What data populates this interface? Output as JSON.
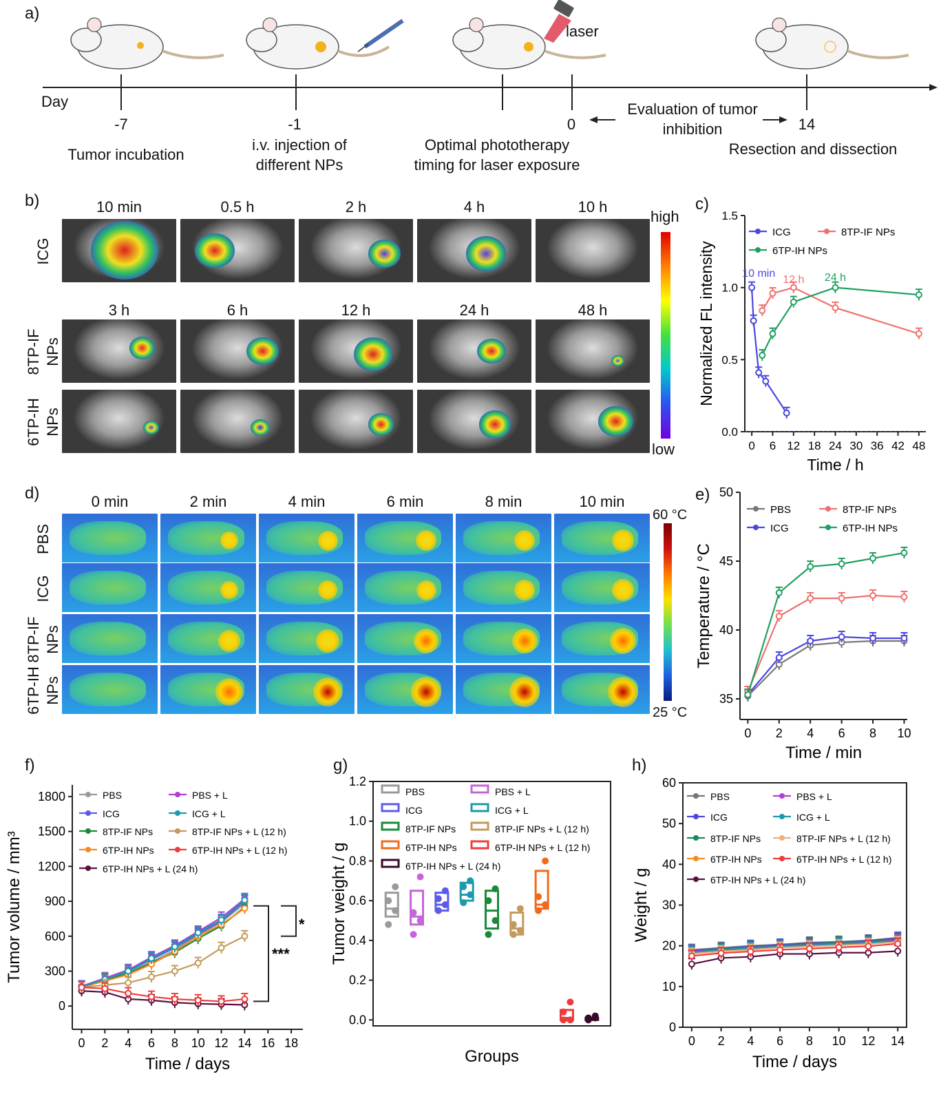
{
  "panel_a": {
    "label": "a)",
    "axis_label": "Day",
    "laser_label": "laser",
    "days": [
      "-7",
      "-1",
      "0",
      "14"
    ],
    "eval_text_1": "Evaluation of tumor",
    "eval_text_2": "inhibition",
    "step_1": "Tumor incubation",
    "step_2_line1": "i.v. injection of",
    "step_2_line2": "different NPs",
    "step_3_line1": "Optimal phototherapy",
    "step_3_line2": "timing for laser exposure",
    "step_4": "Resection and  dissection",
    "colors": {
      "mouse_body": "#f4f4f4",
      "tumor": "#f2b21c",
      "laser": "#e35a6a"
    }
  },
  "panel_b": {
    "label": "b)",
    "row_labels": [
      "ICG",
      "8TP-IF NPs",
      "6TP-IH NPs"
    ],
    "row_label_lines": [
      [
        "ICG"
      ],
      [
        "8TP-IF",
        "NPs"
      ],
      [
        "6TP-IH",
        "NPs"
      ]
    ],
    "icg_times": [
      "10 min",
      "0.5 h",
      "2 h",
      "4 h",
      "10 h"
    ],
    "np_times": [
      "3 h",
      "6 h",
      "12 h",
      "24 h",
      "48 h"
    ],
    "scale_high": "high",
    "scale_low": "low"
  },
  "panel_d": {
    "label": "d)",
    "times": [
      "0 min",
      "2 min",
      "4 min",
      "6 min",
      "8 min",
      "10 min"
    ],
    "row_labels": [
      "PBS",
      "ICG",
      "8TP-IF NPs",
      "6TP-IH NPs"
    ],
    "row_label_lines": [
      [
        "PBS"
      ],
      [
        "ICG"
      ],
      [
        "8TP-IF",
        "NPs"
      ],
      [
        "6TP-IH",
        "NPs"
      ]
    ],
    "scale_high": "60 °C",
    "scale_low": "25 °C"
  },
  "chart_data": [
    {
      "id": "c",
      "panel_label": "c)",
      "type": "line",
      "xlabel": "Time / h",
      "ylabel": "Normalized FL intensity",
      "xticks": [
        0,
        6,
        12,
        18,
        24,
        30,
        36,
        42,
        48
      ],
      "yticks": [
        0.0,
        0.5,
        1.0,
        1.5
      ],
      "xlim": [
        -2,
        50
      ],
      "ylim": [
        0,
        1.5
      ],
      "series": [
        {
          "name": "ICG",
          "color": "#4b47e0",
          "x": [
            0,
            0.5,
            2,
            4,
            10
          ],
          "y": [
            1.0,
            0.77,
            0.41,
            0.35,
            0.13
          ]
        },
        {
          "name": "8TP-IF NPs",
          "color": "#f07070",
          "x": [
            3,
            6,
            12,
            24,
            48
          ],
          "y": [
            0.84,
            0.96,
            1.0,
            0.86,
            0.68
          ]
        },
        {
          "name": "6TP-IH NPs",
          "color": "#20a060",
          "x": [
            3,
            6,
            12,
            24,
            48
          ],
          "y": [
            0.53,
            0.68,
            0.9,
            1.0,
            0.95
          ]
        }
      ],
      "annotations": [
        {
          "text": "10 min",
          "color": "#4b47e0"
        },
        {
          "text": "12 h",
          "color": "#f07070"
        },
        {
          "text": "24 h",
          "color": "#20a060"
        }
      ]
    },
    {
      "id": "e",
      "panel_label": "e)",
      "type": "line",
      "xlabel": "Time / min",
      "ylabel": "Temperature / °C",
      "xticks": [
        0,
        2,
        4,
        6,
        8,
        10
      ],
      "yticks": [
        35,
        40,
        45,
        50
      ],
      "xlim": [
        -0.5,
        10.2
      ],
      "ylim": [
        33.5,
        50
      ],
      "series": [
        {
          "name": "PBS",
          "color": "#777777",
          "x": [
            0,
            2,
            4,
            6,
            8,
            10
          ],
          "y": [
            35.2,
            37.5,
            38.9,
            39.1,
            39.2,
            39.2
          ]
        },
        {
          "name": "ICG",
          "color": "#4b47e0",
          "x": [
            0,
            2,
            4,
            6,
            8,
            10
          ],
          "y": [
            35.3,
            38.0,
            39.2,
            39.5,
            39.4,
            39.4
          ]
        },
        {
          "name": "8TP-IF NPs",
          "color": "#f07070",
          "x": [
            0,
            2,
            4,
            6,
            8,
            10
          ],
          "y": [
            35.5,
            41.0,
            42.3,
            42.3,
            42.5,
            42.4
          ]
        },
        {
          "name": "6TP-IH NPs",
          "color": "#20a060",
          "x": [
            0,
            2,
            4,
            6,
            8,
            10
          ],
          "y": [
            35.3,
            42.7,
            44.6,
            44.8,
            45.2,
            45.6
          ]
        }
      ]
    },
    {
      "id": "f",
      "panel_label": "f)",
      "type": "line",
      "xlabel": "Time / days",
      "ylabel": "Tumor volume / mm³",
      "xticks": [
        0,
        2,
        4,
        6,
        8,
        10,
        12,
        14,
        16,
        18
      ],
      "yticks": [
        0,
        300,
        600,
        900,
        1200,
        1500,
        1800
      ],
      "xlim": [
        -0.8,
        19
      ],
      "ylim": [
        -200,
        1900
      ],
      "significance": [
        "*",
        "***"
      ],
      "series": [
        {
          "name": "PBS",
          "color": "#9a9a9a",
          "x": [
            0,
            2,
            4,
            6,
            8,
            10,
            12,
            14
          ],
          "y": [
            170,
            230,
            290,
            380,
            480,
            610,
            720,
            880
          ]
        },
        {
          "name": "ICG",
          "color": "#5b5be8",
          "x": [
            0,
            2,
            4,
            6,
            8,
            10,
            12,
            14
          ],
          "y": [
            165,
            225,
            300,
            400,
            500,
            620,
            730,
            900
          ]
        },
        {
          "name": "8TP-IF NPs",
          "color": "#1a8a3a",
          "x": [
            0,
            2,
            4,
            6,
            8,
            10,
            12,
            14
          ],
          "y": [
            165,
            220,
            280,
            370,
            460,
            580,
            690,
            850
          ]
        },
        {
          "name": "6TP-IH NPs",
          "color": "#f58a1f",
          "x": [
            0,
            2,
            4,
            6,
            8,
            10,
            12,
            14
          ],
          "y": [
            160,
            215,
            270,
            360,
            470,
            600,
            700,
            840
          ]
        },
        {
          "name": "6TP-IH NPs + L (24 h)",
          "color": "#5a1040",
          "x": [
            0,
            2,
            4,
            6,
            8,
            10,
            12,
            14
          ],
          "y": [
            130,
            120,
            60,
            50,
            30,
            20,
            15,
            10
          ]
        },
        {
          "name": "PBS + L",
          "color": "#b23ed6",
          "x": [
            0,
            2,
            4,
            6,
            8,
            10,
            12,
            14
          ],
          "y": [
            170,
            240,
            310,
            420,
            520,
            640,
            760,
            920
          ]
        },
        {
          "name": "ICG + L",
          "color": "#1a9aaa",
          "x": [
            0,
            2,
            4,
            6,
            8,
            10,
            12,
            14
          ],
          "y": [
            165,
            230,
            300,
            410,
            510,
            630,
            740,
            910
          ]
        },
        {
          "name": "8TP-IF NPs + L (12 h)",
          "color": "#c49a5a",
          "x": [
            0,
            2,
            4,
            6,
            8,
            10,
            12,
            14
          ],
          "y": [
            160,
            180,
            200,
            250,
            300,
            370,
            500,
            600
          ]
        },
        {
          "name": "6TP-IH NPs + L (12 h)",
          "color": "#ee3b3b",
          "x": [
            0,
            2,
            4,
            6,
            8,
            10,
            12,
            14
          ],
          "y": [
            160,
            150,
            110,
            80,
            60,
            50,
            40,
            60
          ]
        }
      ]
    },
    {
      "id": "g",
      "panel_label": "g)",
      "type": "box",
      "xlabel": "Groups",
      "ylabel": "Tumor weight / g",
      "yticks": [
        0.0,
        0.2,
        0.4,
        0.6,
        0.8,
        1.0,
        1.2
      ],
      "ylim": [
        -0.03,
        1.2
      ],
      "groups": [
        {
          "name": "PBS",
          "color": "#9a9a9a",
          "q1": 0.52,
          "median": 0.56,
          "q3": 0.64,
          "points": [
            0.48,
            0.55,
            0.6,
            0.67
          ]
        },
        {
          "name": "PBS + L",
          "color": "#c565d8",
          "q1": 0.48,
          "median": 0.52,
          "q3": 0.65,
          "points": [
            0.43,
            0.5,
            0.54,
            0.72
          ]
        },
        {
          "name": "ICG",
          "color": "#5b5be8",
          "q1": 0.55,
          "median": 0.58,
          "q3": 0.64,
          "points": [
            0.55,
            0.58,
            0.61,
            0.65
          ]
        },
        {
          "name": "ICG + L",
          "color": "#1a9aaa",
          "q1": 0.6,
          "median": 0.63,
          "q3": 0.69,
          "points": [
            0.59,
            0.63,
            0.67,
            0.7
          ]
        },
        {
          "name": "8TP-IF NPs",
          "color": "#1a8a3a",
          "q1": 0.46,
          "median": 0.55,
          "q3": 0.65,
          "points": [
            0.43,
            0.5,
            0.6,
            0.66
          ]
        },
        {
          "name": "8TP-IF NPs + L (12 h)",
          "color": "#c49a5a",
          "q1": 0.43,
          "median": 0.46,
          "q3": 0.54,
          "points": [
            0.43,
            0.45,
            0.48,
            0.56
          ]
        },
        {
          "name": "6TP-IH NPs",
          "color": "#f06a1a",
          "q1": 0.56,
          "median": 0.58,
          "q3": 0.75,
          "points": [
            0.55,
            0.58,
            0.62,
            0.8
          ]
        },
        {
          "name": "6TP-IH NPs + L (12 h)",
          "color": "#ee3b3b",
          "q1": 0.0,
          "median": 0.01,
          "q3": 0.05,
          "points": [
            0.0,
            0.0,
            0.04,
            0.09
          ]
        },
        {
          "name": "6TP-IH NPs + L (24 h)",
          "color": "#3a0a2a",
          "q1": 0.0,
          "median": 0.01,
          "q3": 0.01,
          "points": [
            0.0,
            0.01,
            0.01,
            0.02
          ]
        }
      ]
    },
    {
      "id": "h",
      "panel_label": "h)",
      "type": "line",
      "xlabel": "Time / days",
      "ylabel": "Weight / g",
      "xticks": [
        0,
        2,
        4,
        6,
        8,
        10,
        12,
        14
      ],
      "yticks": [
        0,
        10,
        20,
        30,
        40,
        50,
        60
      ],
      "xlim": [
        -0.6,
        14.6
      ],
      "ylim": [
        0,
        60
      ],
      "series": [
        {
          "name": "PBS",
          "color": "#777777",
          "x": [
            0,
            2,
            4,
            6,
            8,
            10,
            12,
            14
          ],
          "y": [
            19.0,
            19.5,
            20.0,
            20.3,
            20.8,
            21.0,
            21.3,
            22.0
          ]
        },
        {
          "name": "ICG",
          "color": "#4b47e0",
          "x": [
            0,
            2,
            4,
            6,
            8,
            10,
            12,
            14
          ],
          "y": [
            18.8,
            19.3,
            19.8,
            20.2,
            20.6,
            20.8,
            21.2,
            21.8
          ]
        },
        {
          "name": "8TP-IF NPs",
          "color": "#1a8a5a",
          "x": [
            0,
            2,
            4,
            6,
            8,
            10,
            12,
            14
          ],
          "y": [
            18.5,
            19.2,
            19.6,
            20.0,
            20.4,
            20.8,
            21.0,
            21.6
          ]
        },
        {
          "name": "6TP-IH NPs",
          "color": "#f58a1f",
          "x": [
            0,
            2,
            4,
            6,
            8,
            10,
            12,
            14
          ],
          "y": [
            18.2,
            18.8,
            19.2,
            19.7,
            20.0,
            20.3,
            20.6,
            21.2
          ]
        },
        {
          "name": "6TP-IH NPs + L (24 h)",
          "color": "#5a1040",
          "x": [
            0,
            2,
            4,
            6,
            8,
            10,
            12,
            14
          ],
          "y": [
            15.5,
            17.0,
            17.3,
            18.0,
            18.0,
            18.3,
            18.3,
            18.7
          ]
        },
        {
          "name": "PBS + L",
          "color": "#b23ed6",
          "x": [
            0,
            2,
            4,
            6,
            8,
            10,
            12,
            14
          ],
          "y": [
            18.6,
            19.0,
            19.5,
            19.9,
            20.2,
            20.5,
            20.8,
            21.3
          ]
        },
        {
          "name": "ICG + L",
          "color": "#1a9aaa",
          "x": [
            0,
            2,
            4,
            6,
            8,
            10,
            12,
            14
          ],
          "y": [
            18.4,
            19.0,
            19.4,
            19.8,
            20.1,
            20.4,
            20.7,
            21.0
          ]
        },
        {
          "name": "8TP-IF NPs + L (12 h)",
          "color": "#f0b07a",
          "x": [
            0,
            2,
            4,
            6,
            8,
            10,
            12,
            14
          ],
          "y": [
            18.0,
            18.6,
            19.0,
            19.5,
            19.8,
            20.1,
            20.4,
            20.9
          ]
        },
        {
          "name": "6TP-IH NPs + L (12 h)",
          "color": "#ee3b3b",
          "x": [
            0,
            2,
            4,
            6,
            8,
            10,
            12,
            14
          ],
          "y": [
            17.5,
            18.2,
            18.6,
            19.0,
            19.3,
            19.6,
            19.9,
            20.5
          ]
        }
      ]
    }
  ]
}
